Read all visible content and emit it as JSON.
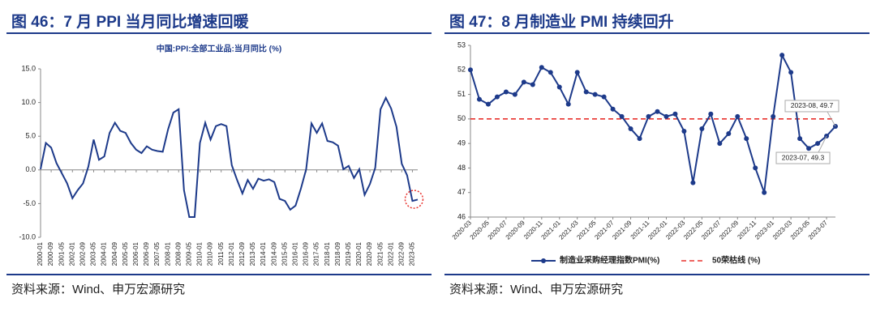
{
  "headers": [
    "图 46：7 月 PPI 当月同比增速回暖",
    "图 47：8 月制造业 PMI 持续回升"
  ],
  "sources": [
    "资料来源：Wind、申万宏源研究",
    "资料来源：Wind、申万宏源研究"
  ],
  "chart_data": [
    {
      "type": "line",
      "title": "中国:PPI:全部工业品:当月同比 (%)",
      "categories": [
        "2000-01",
        null,
        "2000-09",
        null,
        "2001-05",
        null,
        "2002-01",
        null,
        "2002-09",
        null,
        "2003-05",
        null,
        "2004-01",
        null,
        "2004-09",
        null,
        "2005-05",
        null,
        "2006-01",
        null,
        "2006-09",
        null,
        "2007-05",
        null,
        "2008-01",
        null,
        "2008-09",
        null,
        "2009-05",
        null,
        "2010-01",
        null,
        "2010-09",
        null,
        "2011-05",
        null,
        "2012-01",
        null,
        "2012-09",
        null,
        "2013-05",
        null,
        "2014-01",
        null,
        "2014-09",
        null,
        "2015-05",
        null,
        "2016-01",
        null,
        "2016-09",
        null,
        "2017-05",
        null,
        "2018-01",
        null,
        "2018-09",
        null,
        "2019-05",
        null,
        "2020-01",
        null,
        "2020-09",
        null,
        "2021-05",
        null,
        "2022-01",
        null,
        "2022-09",
        null,
        "2023-05",
        null
      ],
      "series": [
        {
          "name": "中国:PPI:全部工业品:当月同比",
          "color": "#1d3a8a",
          "values": [
            0.1,
            4.0,
            3.3,
            1.0,
            -0.5,
            -2.0,
            -4.2,
            -3.0,
            -2.0,
            0.5,
            4.5,
            1.5,
            2.0,
            5.5,
            7.0,
            5.8,
            5.5,
            4.0,
            3.0,
            2.5,
            3.5,
            3.0,
            2.8,
            2.7,
            6.0,
            8.5,
            9.0,
            -3.0,
            -7.0,
            -7.0,
            4.0,
            7.0,
            4.5,
            6.5,
            6.8,
            6.5,
            0.7,
            -1.5,
            -3.5,
            -1.5,
            -2.8,
            -1.3,
            -1.6,
            -1.4,
            -1.8,
            -4.3,
            -4.6,
            -5.9,
            -5.3,
            -2.8,
            0.1,
            6.9,
            5.5,
            6.9,
            4.3,
            4.1,
            3.6,
            0.1,
            0.6,
            -1.2,
            0.1,
            -3.7,
            -2.1,
            0.3,
            9.0,
            10.7,
            9.1,
            6.4,
            0.9,
            -0.8,
            -4.6,
            -4.4
          ]
        }
      ],
      "ylim": [
        -10,
        15
      ],
      "yticks": [
        {
          "value": -10,
          "label": "-10.0"
        },
        {
          "value": -5,
          "label": "-5.0"
        },
        {
          "value": 0,
          "label": "0.0"
        },
        {
          "value": 5,
          "label": "5.0"
        },
        {
          "value": 10,
          "label": "10.0"
        },
        {
          "value": 15,
          "label": "15.0"
        }
      ],
      "grid": false
    },
    {
      "type": "line",
      "categories": [
        "2020-03",
        null,
        "2020-05",
        null,
        "2020-07",
        null,
        "2020-09",
        null,
        "2020-11",
        null,
        "2021-01",
        null,
        "2021-03",
        null,
        "2021-05",
        null,
        "2021-07",
        null,
        "2021-09",
        null,
        "2021-11",
        null,
        "2022-01",
        null,
        "2022-03",
        null,
        "2022-05",
        null,
        "2022-07",
        null,
        "2022-09",
        null,
        "2022-11",
        null,
        "2023-01",
        null,
        "2023-03",
        null,
        "2023-05",
        null,
        "2023-07",
        null
      ],
      "series": [
        {
          "name": "制造业采购经理指数PMI(%)",
          "color": "#1d3a8a",
          "markers": true,
          "values": [
            52.0,
            50.8,
            50.6,
            50.9,
            51.1,
            51.0,
            51.5,
            51.4,
            52.1,
            51.9,
            51.3,
            50.6,
            51.9,
            51.1,
            51.0,
            50.9,
            50.4,
            50.1,
            49.6,
            49.2,
            50.1,
            50.3,
            50.1,
            50.2,
            49.5,
            47.4,
            49.6,
            50.2,
            49.0,
            49.4,
            50.1,
            49.2,
            48.0,
            47.0,
            50.1,
            52.6,
            51.9,
            49.2,
            48.8,
            49.0,
            49.3,
            49.7
          ],
          "value_labels": [
            null,
            null,
            null,
            null,
            null,
            null,
            null,
            null,
            null,
            null,
            null,
            null,
            null,
            null,
            null,
            null,
            null,
            null,
            null,
            null,
            null,
            null,
            null,
            null,
            null,
            null,
            null,
            null,
            null,
            null,
            null,
            null,
            null,
            null,
            null,
            null,
            null,
            null,
            null,
            null,
            "2023-07, 49.3",
            "2023-08, 49.7"
          ]
        }
      ],
      "reference_line": {
        "name": "50荣枯线 (%)",
        "value": 50,
        "color": "#e8322d"
      },
      "ylim": [
        46,
        53
      ],
      "yticks": [
        46,
        47,
        48,
        49,
        50,
        51,
        52,
        53
      ],
      "grid": false,
      "legend": "bottom"
    }
  ]
}
